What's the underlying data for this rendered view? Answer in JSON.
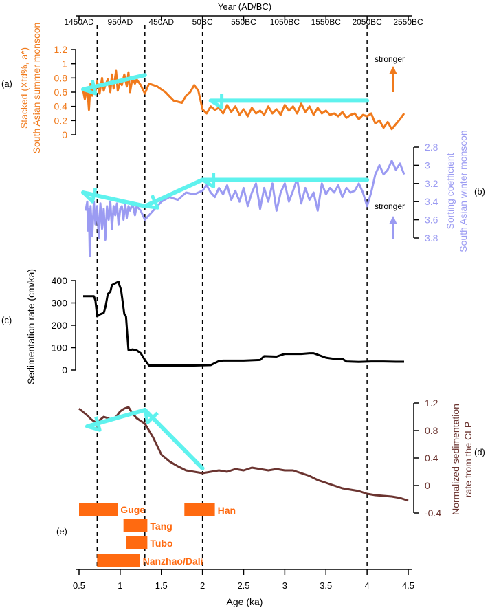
{
  "colors": {
    "monsoon_summer": "#F07A1C",
    "monsoon_winter": "#9B9BF2",
    "sed_rate": "#000000",
    "clp": "#6B3430",
    "arrow": "#5FF2EE",
    "dynasty": "#FF6A10"
  },
  "labels": {
    "top_axis_title": "Year (AD/BC)",
    "bottom_axis_title": "Age (ka)",
    "panel_a": "(a)",
    "panel_b": "(b)",
    "panel_c": "(c)",
    "panel_d": "(d)",
    "panel_e": "(e)",
    "a_ylabel_line1": "Stacked (Xfd%, a*)",
    "a_ylabel_line2": "South Asian summer monsoon",
    "b_ylabel_line1": "Sorting coefficient",
    "b_ylabel_line2": "South Asian winter monsoon",
    "c_ylabel": "Sedimentation rate (cm/ka)",
    "d_ylabel_line1": "Normalized sedimentation",
    "d_ylabel_line2": "rate from the CLP",
    "stronger_a": "stronger",
    "stronger_b": "stronger"
  },
  "chart_data": {
    "type": "line",
    "title": "",
    "x_axis": {
      "label": "Age (ka)",
      "ticks": [
        "0.5",
        "1",
        "1.5",
        "2",
        "2.5",
        "3",
        "3.5",
        "4",
        "4.5"
      ],
      "range": [
        0.5,
        4.5
      ]
    },
    "top_axis": {
      "label": "Year (AD/BC)",
      "ticks": [
        "1450AD",
        "950AD",
        "450AD",
        "50BC",
        "550BC",
        "1050BC",
        "1550BC",
        "2050BC",
        "2550BC"
      ]
    },
    "vertical_dashed_lines_ka": [
      0.72,
      1.3,
      2.0,
      4.0
    ],
    "panels": [
      {
        "id": "a",
        "series_name": "Stacked (Xfd%, a*) — South Asian summer monsoon",
        "axis_side": "left",
        "y_ticks": [
          "0",
          "0.2",
          "0.4",
          "0.6",
          "0.8",
          "1",
          "1.2"
        ],
        "ylim": [
          0,
          1.2
        ],
        "x": [
          0.55,
          0.57,
          0.6,
          0.62,
          0.64,
          0.66,
          0.68,
          0.7,
          0.72,
          0.75,
          0.78,
          0.8,
          0.82,
          0.85,
          0.88,
          0.9,
          0.92,
          0.95,
          0.97,
          1.0,
          1.02,
          1.05,
          1.08,
          1.1,
          1.12,
          1.15,
          1.18,
          1.2,
          1.25,
          1.3,
          1.35,
          1.45,
          1.55,
          1.65,
          1.75,
          1.8,
          1.85,
          1.9,
          1.95,
          2.0,
          2.05,
          2.1,
          2.15,
          2.2,
          2.25,
          2.3,
          2.35,
          2.4,
          2.45,
          2.5,
          2.55,
          2.6,
          2.65,
          2.7,
          2.75,
          2.8,
          2.85,
          2.9,
          2.95,
          3.0,
          3.05,
          3.1,
          3.15,
          3.2,
          3.25,
          3.3,
          3.35,
          3.4,
          3.45,
          3.5,
          3.55,
          3.6,
          3.65,
          3.7,
          3.75,
          3.8,
          3.85,
          3.9,
          3.95,
          4.0,
          4.05,
          4.1,
          4.15,
          4.2,
          4.25,
          4.3,
          4.35,
          4.4,
          4.45
        ],
        "y": [
          0.62,
          0.5,
          0.66,
          0.35,
          0.72,
          0.55,
          0.68,
          0.6,
          0.75,
          0.58,
          0.8,
          0.62,
          0.7,
          0.78,
          0.6,
          0.85,
          0.65,
          0.9,
          0.62,
          0.75,
          0.7,
          0.85,
          0.68,
          0.88,
          0.6,
          0.8,
          0.72,
          0.78,
          0.7,
          0.58,
          0.72,
          0.68,
          0.6,
          0.48,
          0.45,
          0.55,
          0.6,
          0.7,
          0.62,
          0.36,
          0.3,
          0.4,
          0.35,
          0.38,
          0.3,
          0.42,
          0.32,
          0.4,
          0.28,
          0.36,
          0.26,
          0.38,
          0.3,
          0.34,
          0.28,
          0.4,
          0.3,
          0.36,
          0.28,
          0.42,
          0.34,
          0.4,
          0.3,
          0.44,
          0.32,
          0.4,
          0.28,
          0.38,
          0.3,
          0.34,
          0.28,
          0.3,
          0.26,
          0.32,
          0.24,
          0.28,
          0.3,
          0.22,
          0.28,
          0.26,
          0.3,
          0.16,
          0.2,
          0.1,
          0.18,
          0.08,
          0.15,
          0.22,
          0.3
        ]
      },
      {
        "id": "b",
        "series_name": "Sorting coefficient — South Asian winter monsoon",
        "axis_side": "right",
        "y_ticks": [
          "2.8",
          "3",
          "3.2",
          "3.4",
          "3.6",
          "3.8"
        ],
        "ylim": [
          2.8,
          3.8
        ],
        "y_inverted": true,
        "x": [
          0.58,
          0.6,
          0.61,
          0.62,
          0.63,
          0.64,
          0.66,
          0.68,
          0.7,
          0.72,
          0.74,
          0.76,
          0.78,
          0.8,
          0.82,
          0.84,
          0.86,
          0.88,
          0.9,
          0.92,
          0.94,
          0.96,
          0.98,
          1.0,
          1.02,
          1.04,
          1.06,
          1.08,
          1.1,
          1.12,
          1.15,
          1.18,
          1.2,
          1.25,
          1.3,
          1.4,
          1.5,
          1.6,
          1.7,
          1.8,
          1.9,
          2.0,
          2.05,
          2.1,
          2.15,
          2.2,
          2.25,
          2.3,
          2.35,
          2.4,
          2.45,
          2.5,
          2.55,
          2.6,
          2.65,
          2.7,
          2.75,
          2.8,
          2.85,
          2.9,
          2.95,
          3.0,
          3.05,
          3.1,
          3.15,
          3.2,
          3.25,
          3.3,
          3.35,
          3.4,
          3.45,
          3.5,
          3.55,
          3.6,
          3.65,
          3.7,
          3.75,
          3.8,
          3.85,
          3.9,
          3.95,
          4.0,
          4.05,
          4.1,
          4.15,
          4.2,
          4.25,
          4.3,
          4.35,
          4.4,
          4.45
        ],
        "y": [
          3.5,
          3.4,
          3.72,
          3.48,
          4.0,
          3.45,
          3.78,
          3.4,
          3.65,
          3.45,
          3.8,
          3.42,
          3.7,
          3.48,
          3.82,
          3.45,
          3.6,
          3.4,
          3.7,
          3.45,
          3.55,
          3.42,
          3.65,
          3.48,
          3.45,
          3.6,
          3.42,
          3.58,
          3.45,
          3.5,
          3.42,
          3.55,
          3.45,
          3.5,
          3.6,
          3.5,
          3.4,
          3.35,
          3.38,
          3.3,
          3.32,
          3.28,
          3.22,
          3.3,
          3.35,
          3.25,
          3.32,
          3.22,
          3.38,
          3.28,
          3.4,
          3.25,
          3.45,
          3.3,
          3.2,
          3.48,
          3.25,
          3.4,
          3.2,
          3.5,
          3.3,
          3.2,
          3.4,
          3.28,
          3.15,
          3.42,
          3.25,
          3.38,
          3.3,
          3.5,
          3.2,
          3.32,
          3.25,
          3.3,
          3.22,
          3.35,
          3.25,
          3.3,
          3.28,
          3.2,
          3.3,
          3.45,
          3.3,
          3.1,
          3.0,
          3.1,
          3.05,
          2.95,
          3.05,
          2.98,
          3.1
        ]
      },
      {
        "id": "c",
        "series_name": "Sedimentation rate (cm/ka)",
        "axis_side": "left",
        "y_ticks": [
          "0",
          "100",
          "200",
          "300",
          "400"
        ],
        "ylim": [
          0,
          400
        ],
        "x": [
          0.55,
          0.65,
          0.68,
          0.7,
          0.72,
          0.76,
          0.8,
          0.82,
          0.85,
          0.88,
          0.9,
          0.95,
          0.98,
          0.99,
          1.01,
          1.05,
          1.07,
          1.1,
          1.13,
          1.15,
          1.2,
          1.25,
          1.3,
          1.35,
          1.5,
          1.7,
          1.9,
          2.1,
          2.2,
          2.25,
          2.5,
          2.7,
          2.75,
          2.9,
          3.0,
          3.2,
          3.3,
          3.35,
          3.5,
          3.6,
          3.7,
          3.75,
          3.9,
          4.05,
          4.2,
          4.35,
          4.45
        ],
        "y": [
          330,
          330,
          330,
          310,
          240,
          250,
          255,
          280,
          340,
          350,
          380,
          390,
          395,
          380,
          360,
          250,
          240,
          90,
          90,
          92,
          88,
          75,
          45,
          20,
          20,
          20,
          20,
          22,
          40,
          42,
          42,
          45,
          62,
          60,
          72,
          72,
          75,
          75,
          55,
          50,
          50,
          38,
          36,
          38,
          38,
          37,
          37
        ]
      },
      {
        "id": "d",
        "series_name": "Normalized sedimentation rate from the CLP",
        "axis_side": "right",
        "y_ticks": [
          "-0.4",
          "0",
          "0.4",
          "0.8",
          "1.2"
        ],
        "ylim": [
          -0.4,
          1.2
        ],
        "x": [
          0.5,
          0.6,
          0.65,
          0.7,
          0.75,
          0.8,
          0.85,
          0.9,
          0.95,
          1.0,
          1.05,
          1.1,
          1.15,
          1.2,
          1.3,
          1.4,
          1.5,
          1.6,
          1.7,
          1.8,
          1.9,
          2.0,
          2.1,
          2.2,
          2.3,
          2.4,
          2.5,
          2.6,
          2.7,
          2.8,
          2.9,
          3.0,
          3.1,
          3.2,
          3.3,
          3.4,
          3.5,
          3.6,
          3.7,
          3.8,
          3.9,
          4.0,
          4.1,
          4.2,
          4.3,
          4.4,
          4.5
        ],
        "y": [
          1.12,
          1.02,
          0.96,
          0.92,
          0.95,
          1.0,
          0.98,
          0.96,
          1.0,
          1.08,
          1.12,
          1.14,
          1.05,
          0.98,
          0.9,
          0.7,
          0.45,
          0.35,
          0.28,
          0.22,
          0.2,
          0.18,
          0.2,
          0.22,
          0.2,
          0.24,
          0.22,
          0.26,
          0.24,
          0.22,
          0.24,
          0.22,
          0.22,
          0.18,
          0.14,
          0.08,
          0.04,
          0.0,
          -0.04,
          -0.06,
          -0.08,
          -0.12,
          -0.14,
          -0.15,
          -0.16,
          -0.18,
          -0.22
        ]
      }
    ],
    "arrows_ka": {
      "a": [
        [
          4.0,
          2.1
        ],
        [
          1.3,
          0.55
        ]
      ],
      "b": [
        [
          4.0,
          2.0
        ],
        [
          2.0,
          1.3
        ],
        [
          1.3,
          0.55
        ]
      ],
      "d": [
        [
          2.0,
          1.3
        ],
        [
          1.3,
          0.6
        ]
      ]
    },
    "dynasties": [
      {
        "name": "Guge",
        "start_ka": 0.5,
        "end_ka": 0.97
      },
      {
        "name": "Tang",
        "start_ka": 1.04,
        "end_ka": 1.33
      },
      {
        "name": "Tubo",
        "start_ka": 1.07,
        "end_ka": 1.33
      },
      {
        "name": "Nanzhao/Dali",
        "start_ka": 0.72,
        "end_ka": 1.24
      },
      {
        "name": "Han",
        "start_ka": 1.78,
        "end_ka": 2.15
      }
    ]
  }
}
